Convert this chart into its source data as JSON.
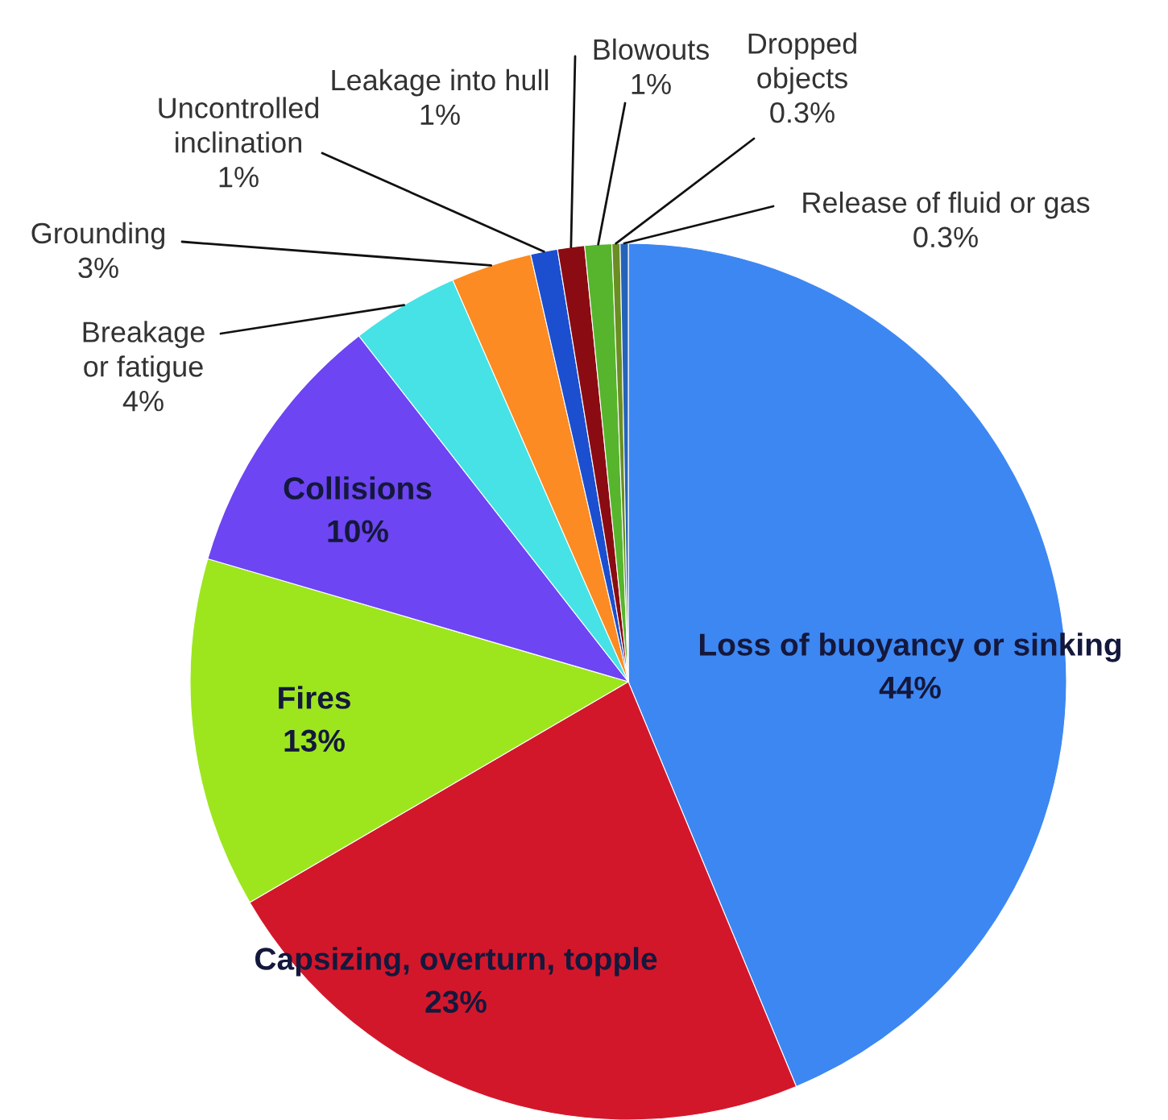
{
  "chart_data": {
    "type": "pie",
    "categories": [
      "Loss of buoyancy or sinking",
      "Capsizing, overturn, topple",
      "Fires",
      "Collisions",
      "Breakage\nor fatigue",
      "Grounding",
      "Uncontrolled\ninclination",
      "Leakage into hull",
      "Blowouts",
      "Dropped\nobjects",
      "Release of fluid or gas"
    ],
    "values": [
      44,
      23,
      13,
      10,
      4,
      3,
      1,
      1,
      1,
      0.3,
      0.3
    ],
    "colors": [
      "#3d87f2",
      "#d3172b",
      "#9de61e",
      "#6d45f2",
      "#46e2e6",
      "#fb8b22",
      "#1b4fcf",
      "#8a0c12",
      "#56b52d",
      "#6b8e23",
      "#2563b8"
    ],
    "value_labels": [
      "44%",
      "23%",
      "13%",
      "10%",
      "4%",
      "3%",
      "1%",
      "1%",
      "1%",
      "0.3%",
      "0.3%"
    ]
  }
}
